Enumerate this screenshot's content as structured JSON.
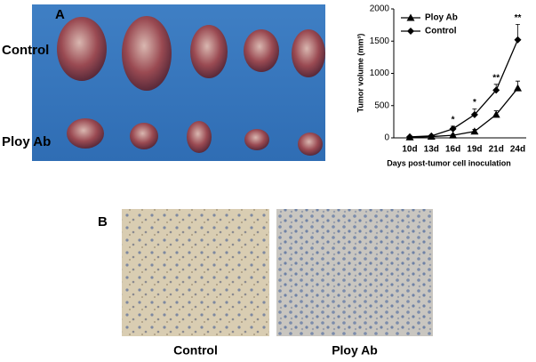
{
  "panel_a": {
    "label": "A",
    "row_labels": [
      "Control",
      "Ploy Ab"
    ]
  },
  "panel_b": {
    "label": "B",
    "captions": [
      "Control",
      "Ploy Ab"
    ]
  },
  "chart_data": {
    "type": "line",
    "y_label": "Tumor volume (mm³)",
    "x_label": "Days post-tumor cell inoculation",
    "categories": [
      "10d",
      "13d",
      "16d",
      "19d",
      "21d",
      "24d"
    ],
    "series": [
      {
        "name": "Ploy Ab",
        "color": "#000000",
        "marker": "triangle",
        "values": [
          10,
          20,
          40,
          100,
          360,
          770
        ],
        "errors": [
          5,
          10,
          15,
          30,
          60,
          110
        ]
      },
      {
        "name": "Control",
        "color": "#000000",
        "marker": "diamond",
        "values": [
          15,
          30,
          140,
          360,
          740,
          1520
        ],
        "errors": [
          5,
          10,
          40,
          90,
          90,
          240
        ]
      }
    ],
    "annotations": [
      {
        "x": "16d",
        "text": "*"
      },
      {
        "x": "19d",
        "text": "*"
      },
      {
        "x": "21d",
        "text": "**"
      },
      {
        "x": "24d",
        "text": "**"
      }
    ],
    "ylim": [
      0,
      2000
    ],
    "yticks": [
      0,
      500,
      1000,
      1500,
      2000
    ],
    "legend": "top-left",
    "grid": false
  }
}
